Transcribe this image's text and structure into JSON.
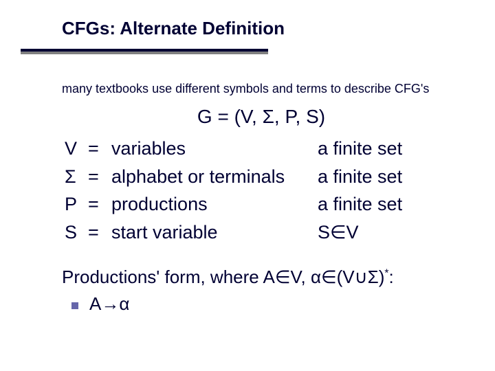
{
  "colors": {
    "text": "#000033",
    "rule_main": "#000033",
    "rule_shadow": "#808080",
    "bullet": "#6666aa",
    "background": "#ffffff"
  },
  "title": "CFGs: Alternate Definition",
  "subtitle": "many textbooks use different symbols and terms to describe CFG's",
  "tuple": "G = (V, Σ, P, S)",
  "defs": [
    {
      "sym": "V",
      "eq": "=",
      "desc": "variables",
      "ann": "a finite set"
    },
    {
      "sym": "Σ",
      "eq": "=",
      "desc": "alphabet or terminals",
      "ann": "a finite set"
    },
    {
      "sym": "P",
      "eq": "=",
      "desc": "productions",
      "ann": "a finite set"
    },
    {
      "sym": "S",
      "eq": "=",
      "desc": "start variable",
      "ann": "S∈V"
    }
  ],
  "productions": {
    "intro_prefix": "Productions' form, where A",
    "in": "∈",
    "V": "V, ",
    "alpha": "α",
    "open": "(V",
    "cup": "∪",
    "sigma": "Σ",
    "close": ")",
    "star": "*",
    "colon": ":",
    "rule_lhs": "A ",
    "arrow": "→",
    "rule_rhs": " α"
  },
  "typography": {
    "title_fontsize": 26,
    "subtitle_fontsize": 18,
    "tuple_fontsize": 28,
    "body_fontsize": 27,
    "prod_fontsize": 26,
    "font_family": "Verdana"
  }
}
